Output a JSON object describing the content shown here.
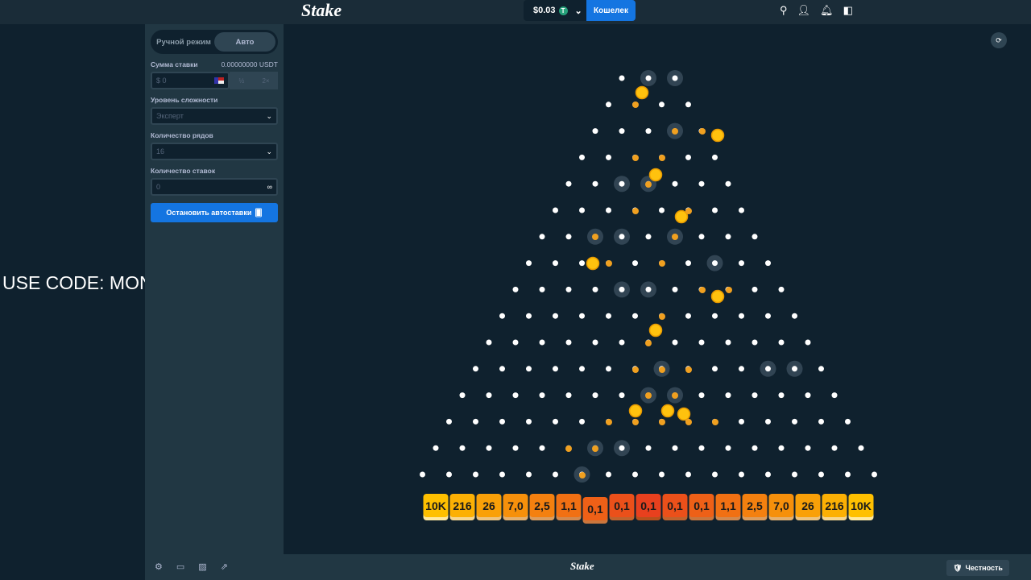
{
  "header": {
    "logo": "Stake",
    "balance": "$0.03",
    "currency_icon": "T",
    "wallet_label": "Кошелек"
  },
  "promo_text": "USE CODE: MONKAGX",
  "panel": {
    "modes": [
      "Ручной режим",
      "Авто"
    ],
    "active_mode": "Авто",
    "bet_amount_label": "Сумма ставки",
    "bet_amount_crypto": "0.00000000 USDT",
    "bet_amount_value": "$ 0",
    "half_label": "½",
    "double_label": "2×",
    "risk_label": "Уровень сложности",
    "risk_value": "Эксперт",
    "rows_label": "Количество рядов",
    "rows_value": "16",
    "bets_count_label": "Количество ставок",
    "bets_count_value": "0",
    "infinity": "∞",
    "stop_button": "Остановить автоставки"
  },
  "game": {
    "rows": 16,
    "multipliers": [
      "10K",
      "216",
      "26",
      "7,0",
      "2,5",
      "1,1",
      "0,1",
      "0,1",
      "0,1",
      "0,1",
      "0,1",
      "1,1",
      "2,5",
      "7,0",
      "26",
      "216",
      "10K"
    ],
    "colors": {
      "edge": "#ffc000",
      "center": "#e8401e",
      "peg": "#ffffff",
      "ball": "#ffc20e"
    }
  },
  "footer": {
    "logo": "Stake",
    "fairness_label": "Честность"
  }
}
